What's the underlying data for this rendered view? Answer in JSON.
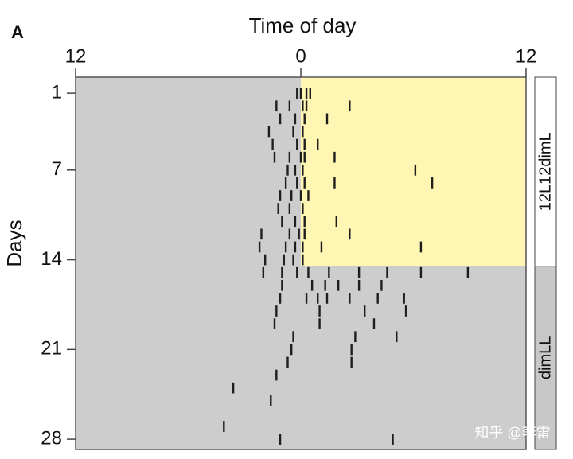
{
  "chart_data": {
    "type": "actogram",
    "panel_label": "A",
    "title": "Time of day",
    "y_label": "Days",
    "xlim": [
      -12,
      12
    ],
    "xticks": [
      {
        "value": -12,
        "label": "12"
      },
      0,
      12
    ],
    "ylim": [
      -0.25,
      28.8
    ],
    "yticks": [
      1,
      7,
      14,
      21,
      28
    ],
    "background": "#cdcdcd",
    "light": {
      "x": [
        0,
        12
      ],
      "y": [
        -0.25,
        14.5
      ],
      "color": "#fff6b3"
    },
    "conditions": [
      {
        "label": "12L12dimL",
        "y": [
          -0.25,
          14.5
        ],
        "color": "#ffffff"
      },
      {
        "label": "dimLL",
        "y": [
          14.5,
          28.8
        ],
        "color": "#c8c8c8"
      }
    ],
    "color": "#1e1e1e",
    "x": [
      -0.2,
      0,
      0.3,
      0.5,
      -1.3,
      -0.6,
      0.1,
      0.3,
      2.6,
      -1.1,
      -0.3,
      0.2,
      1.4,
      -1.7,
      -0.4,
      0.1,
      -1.5,
      -0.2,
      0.2,
      0.9,
      -1.4,
      -0.6,
      0,
      0.2,
      1.8,
      -0.7,
      -0.3,
      0.1,
      6.1,
      -0.8,
      -0.2,
      0.2,
      1.8,
      7.0,
      -1.1,
      -0.5,
      0,
      0.4,
      -1.2,
      -0.6,
      0.1,
      -1.0,
      -0.3,
      0.2,
      1.9,
      -2.1,
      -0.6,
      -0.1,
      0.2,
      2.6,
      -2.2,
      -0.8,
      -0.3,
      0.1,
      1.1,
      6.4,
      -1.9,
      -0.9,
      -0.4,
      0.1,
      -2.0,
      -1.0,
      -0.2,
      0.4,
      1.5,
      3.1,
      4.6,
      6.4,
      8.9,
      -1.0,
      0.6,
      1.3,
      2.0,
      3.1,
      4.3,
      -1.1,
      0.3,
      0.9,
      1.4,
      2.6,
      4.1,
      5.5,
      -1.3,
      1.0,
      3.4,
      5.6,
      -1.4,
      1.0,
      3.9,
      -0.4,
      2.9,
      5.1,
      -0.5,
      2.7,
      -0.7,
      2.7,
      -1.3,
      -3.6,
      -1.6,
      -4.1,
      -1.1,
      4.9
    ],
    "y": [
      1,
      1,
      1,
      1,
      2,
      2,
      2,
      2,
      2,
      3,
      3,
      3,
      3,
      4,
      4,
      4,
      5,
      5,
      5,
      5,
      6,
      6,
      6,
      6,
      6,
      7,
      7,
      7,
      7,
      8,
      8,
      8,
      8,
      8,
      9,
      9,
      9,
      9,
      10,
      10,
      10,
      11,
      11,
      11,
      11,
      12,
      12,
      12,
      12,
      12,
      13,
      13,
      13,
      13,
      13,
      13,
      14,
      14,
      14,
      14,
      15,
      15,
      15,
      15,
      15,
      15,
      15,
      15,
      15,
      16,
      16,
      16,
      16,
      16,
      16,
      17,
      17,
      17,
      17,
      17,
      17,
      17,
      18,
      18,
      18,
      18,
      19,
      19,
      19,
      20,
      20,
      20,
      21,
      21,
      22,
      22,
      23,
      24,
      25,
      27,
      28,
      28
    ]
  },
  "watermark": "知乎 @李雷"
}
